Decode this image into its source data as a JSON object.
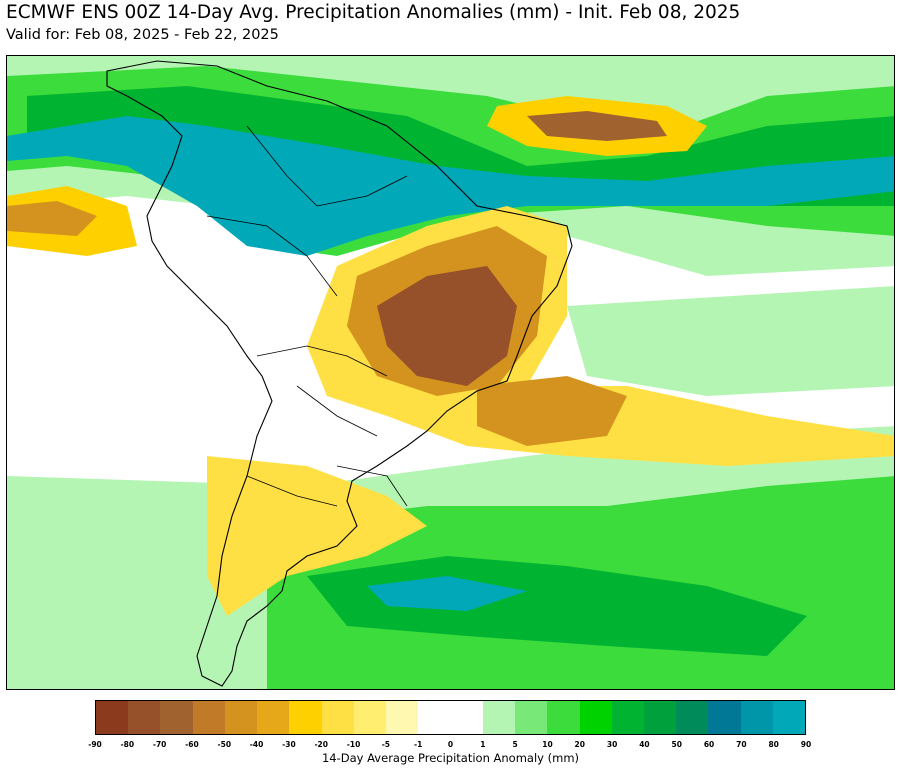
{
  "title": "ECMWF ENS 00Z 14-Day Avg. Precipitation Anomalies (mm) - Init. Feb 08, 2025",
  "subtitle": "Valid for: Feb 08, 2025 - Feb 22, 2025",
  "colorbar": {
    "label": "14-Day Average Precipitation Anomaly (mm)",
    "ticks": [
      "-90",
      "-80",
      "-70",
      "-60",
      "-50",
      "-40",
      "-30",
      "-20",
      "-10",
      "-5",
      "-1",
      "0",
      "1",
      "5",
      "10",
      "20",
      "30",
      "40",
      "50",
      "60",
      "70",
      "80",
      "90"
    ],
    "colors": [
      "#8b3a1e",
      "#96502a",
      "#a0622e",
      "#c07a28",
      "#d4921e",
      "#e6a818",
      "#ffd000",
      "#ffe044",
      "#ffee70",
      "#fff8b0",
      "#ffffff",
      "#ffffff",
      "#b4f5b4",
      "#78e878",
      "#3cdc3c",
      "#00d200",
      "#00b432",
      "#00a03c",
      "#008c5a",
      "#007896",
      "#0096aa",
      "#00a8b8"
    ]
  },
  "map": {
    "region": "South America",
    "colors": {
      "ocean_neutral": "#ffffff",
      "wet_light": "#b4f5b4",
      "wet_mid": "#3cdc3c",
      "wet_strong": "#00b432",
      "wet_very": "#00a8b8",
      "dry_light": "#fff8b0",
      "dry_mid": "#ffd000",
      "dry_strong": "#d4921e",
      "dry_very": "#96502a",
      "border": "#000000"
    }
  }
}
